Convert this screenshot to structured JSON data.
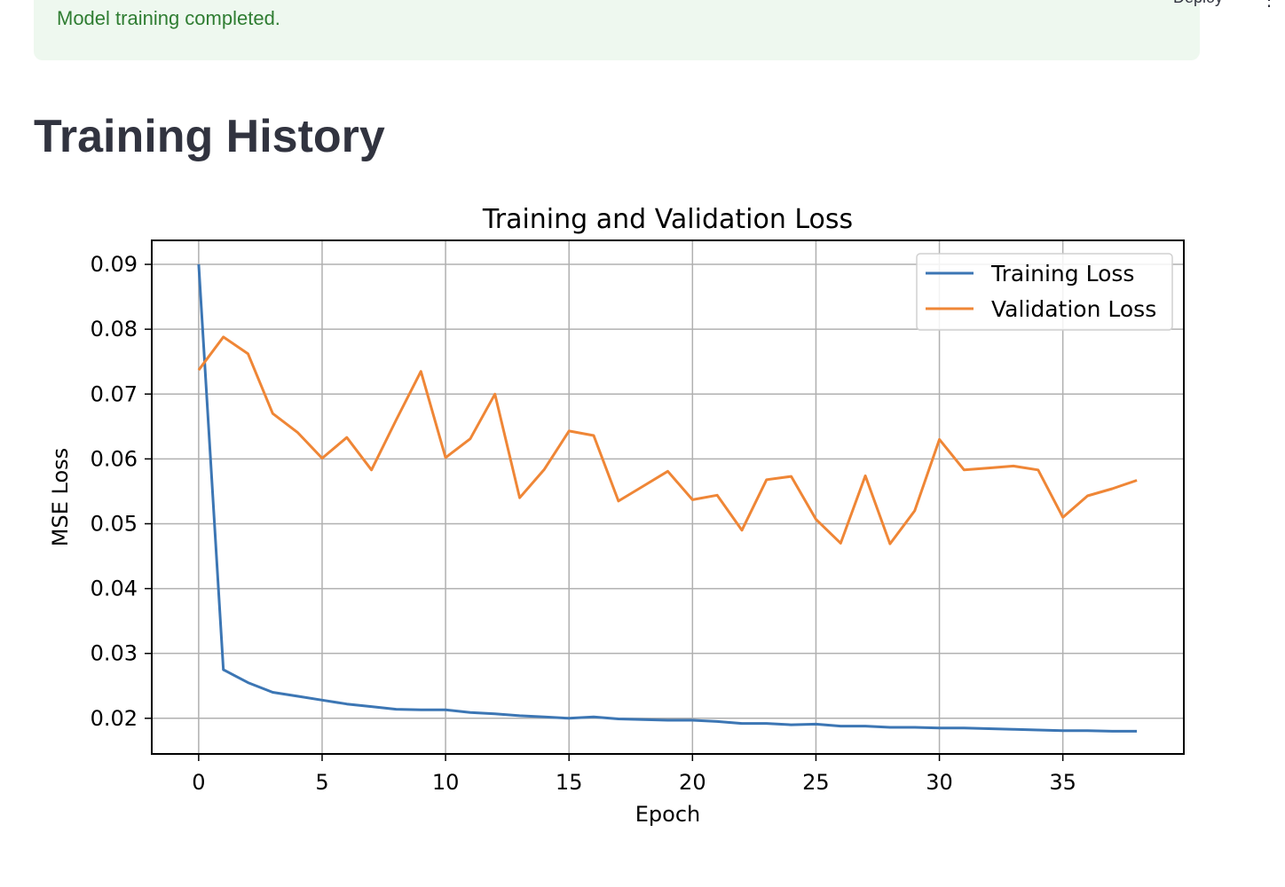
{
  "banner": {
    "message": "Model training completed.",
    "color": "#2f7d32",
    "background": "#eef8ef"
  },
  "toolbar": {
    "deploy_label": "Deploy",
    "menu_icon": "vertical-dots-icon"
  },
  "page_title": "Training History",
  "chart_data": {
    "type": "line",
    "title": "Training and Validation Loss",
    "xlabel": "Epoch",
    "ylabel": "MSE Loss",
    "xlim": [
      -1.9,
      39.9
    ],
    "ylim": [
      0.0145,
      0.0937
    ],
    "xticks": [
      0,
      5,
      10,
      15,
      20,
      25,
      30,
      35
    ],
    "xtick_labels": [
      "0",
      "5",
      "10",
      "15",
      "20",
      "25",
      "30",
      "35"
    ],
    "yticks": [
      0.02,
      0.03,
      0.04,
      0.05,
      0.06,
      0.07,
      0.08,
      0.09
    ],
    "ytick_labels": [
      "0.02",
      "0.03",
      "0.04",
      "0.05",
      "0.06",
      "0.07",
      "0.08",
      "0.09"
    ],
    "grid": true,
    "legend": "top-right",
    "x": [
      0,
      1,
      2,
      3,
      4,
      5,
      6,
      7,
      8,
      9,
      10,
      11,
      12,
      13,
      14,
      15,
      16,
      17,
      18,
      19,
      20,
      21,
      22,
      23,
      24,
      25,
      26,
      27,
      28,
      29,
      30,
      31,
      32,
      33,
      34,
      35,
      36,
      37,
      38
    ],
    "series": [
      {
        "name": "Training Loss",
        "color": "#3c76b4",
        "values": [
          0.09,
          0.0275,
          0.0255,
          0.024,
          0.0234,
          0.0228,
          0.0222,
          0.0218,
          0.0214,
          0.0213,
          0.0213,
          0.0209,
          0.0207,
          0.0204,
          0.0202,
          0.02,
          0.0202,
          0.0199,
          0.0198,
          0.0197,
          0.0197,
          0.0195,
          0.0192,
          0.0192,
          0.019,
          0.0191,
          0.0188,
          0.0188,
          0.0186,
          0.0186,
          0.0185,
          0.0185,
          0.0184,
          0.0183,
          0.0182,
          0.0181,
          0.0181,
          0.018,
          0.018
        ]
      },
      {
        "name": "Validation Loss",
        "color": "#ef8636",
        "values": [
          0.0737,
          0.0788,
          0.0762,
          0.067,
          0.0641,
          0.0601,
          0.0633,
          0.0583,
          0.066,
          0.0735,
          0.0602,
          0.0631,
          0.07,
          0.054,
          0.0584,
          0.0643,
          0.0636,
          0.0535,
          0.0558,
          0.0581,
          0.0537,
          0.0544,
          0.049,
          0.0568,
          0.0573,
          0.0507,
          0.047,
          0.0574,
          0.0469,
          0.052,
          0.063,
          0.0583,
          0.0586,
          0.0589,
          0.0583,
          0.051,
          0.0543,
          0.0554,
          0.0567
        ]
      }
    ]
  }
}
